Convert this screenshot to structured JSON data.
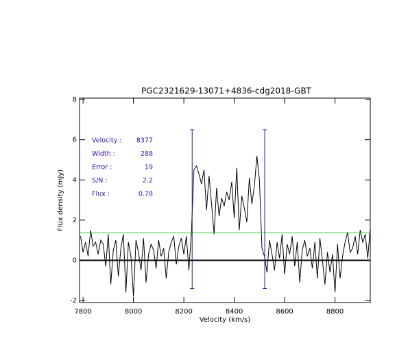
{
  "chart_data": {
    "type": "line",
    "title": "PGC2321629-13071+4836-cdg2018-GBT",
    "x_label": "Velocity (km/s)",
    "y_label": "Flux density (mJy)",
    "xlim": [
      7786,
      8940
    ],
    "ylim": [
      -2.1,
      8.07
    ],
    "xticks": [
      7800,
      8000,
      8200,
      8400,
      8600,
      8800
    ],
    "yticks": [
      -2,
      0,
      2,
      4,
      6,
      8
    ],
    "x": [
      7790,
      7800,
      7810,
      7820,
      7830,
      7840,
      7850,
      7860,
      7870,
      7880,
      7890,
      7900,
      7910,
      7920,
      7930,
      7940,
      7950,
      7960,
      7970,
      7980,
      7990,
      8000,
      8010,
      8020,
      8030,
      8040,
      8050,
      8060,
      8070,
      8080,
      8090,
      8100,
      8110,
      8120,
      8130,
      8140,
      8150,
      8160,
      8170,
      8180,
      8190,
      8200,
      8210,
      8220,
      8230,
      8240,
      8250,
      8260,
      8270,
      8280,
      8290,
      8300,
      8310,
      8320,
      8330,
      8340,
      8350,
      8360,
      8370,
      8380,
      8390,
      8400,
      8410,
      8420,
      8430,
      8440,
      8450,
      8460,
      8470,
      8480,
      8490,
      8500,
      8510,
      8520,
      8530,
      8540,
      8550,
      8560,
      8570,
      8580,
      8590,
      8600,
      8610,
      8620,
      8630,
      8640,
      8650,
      8660,
      8670,
      8680,
      8690,
      8700,
      8710,
      8720,
      8730,
      8740,
      8750,
      8760,
      8770,
      8780,
      8790,
      8800,
      8810,
      8820,
      8830,
      8840,
      8850,
      8860,
      8870,
      8880,
      8890,
      8900,
      8910,
      8920,
      8930,
      8940
    ],
    "series": [
      {
        "color": "#000000",
        "values": [
          1.2,
          0.4,
          0.9,
          0.2,
          1.5,
          0.7,
          0.9,
          0.3,
          1.0,
          0.8,
          -0.3,
          1.3,
          -1.2,
          0.5,
          1.0,
          -0.8,
          0.6,
          1.3,
          -1.6,
          0.9,
          0.2,
          -1.8,
          1.0,
          0.4,
          -0.5,
          1.1,
          -1.1,
          0.3,
          0.8,
          0.5,
          -0.4,
          1.0,
          0.2,
          0.6,
          -0.9,
          0.4,
          0.9,
          1.2,
          -0.2,
          0.7,
          1.1,
          0.3,
          1.2,
          -0.5,
          1.4,
          4.5,
          4.7,
          4.3,
          3.8,
          4.5,
          2.5,
          4.2,
          2.8,
          1.3,
          3.6,
          2.2,
          3.1,
          2.7,
          3.4,
          3.0,
          3.9,
          2.1,
          4.6,
          1.5,
          3.2,
          2.6,
          1.9,
          4.1,
          2.8,
          3.7,
          5.2,
          4.0,
          0.6,
          0.2,
          -0.6,
          1.0,
          0.3,
          -0.5,
          0.9,
          0.1,
          1.3,
          -0.7,
          0.8,
          0.3,
          1.2,
          -0.3,
          0.9,
          -1.1,
          0.5,
          1.0,
          0.2,
          0.6,
          -0.4,
          0.9,
          -0.9,
          1.1,
          0.0,
          -1.2,
          0.4,
          -0.6,
          0.3,
          -1.6,
          0.8,
          -0.9,
          0.2,
          0.9,
          1.4,
          0.4,
          0.6,
          1.2,
          0.3,
          1.5,
          0.9,
          1.3,
          0.1,
          1.6
        ]
      }
    ],
    "hlines": [
      {
        "value": 0,
        "color": "#000000"
      },
      {
        "value": 1.37,
        "color": "#33cc33"
      }
    ],
    "markers": [
      8233,
      8521
    ],
    "marker_range": [
      -1.4,
      6.5
    ],
    "marker_color": "#3311aa",
    "annotations": [
      {
        "label": "Velocity :",
        "value": 8377
      },
      {
        "label": "Width :",
        "value": 288
      },
      {
        "label": "Error :",
        "value": 19
      },
      {
        "label": "S/N :",
        "value": 2.2
      },
      {
        "label": "Flux :",
        "value": 0.78
      }
    ]
  }
}
